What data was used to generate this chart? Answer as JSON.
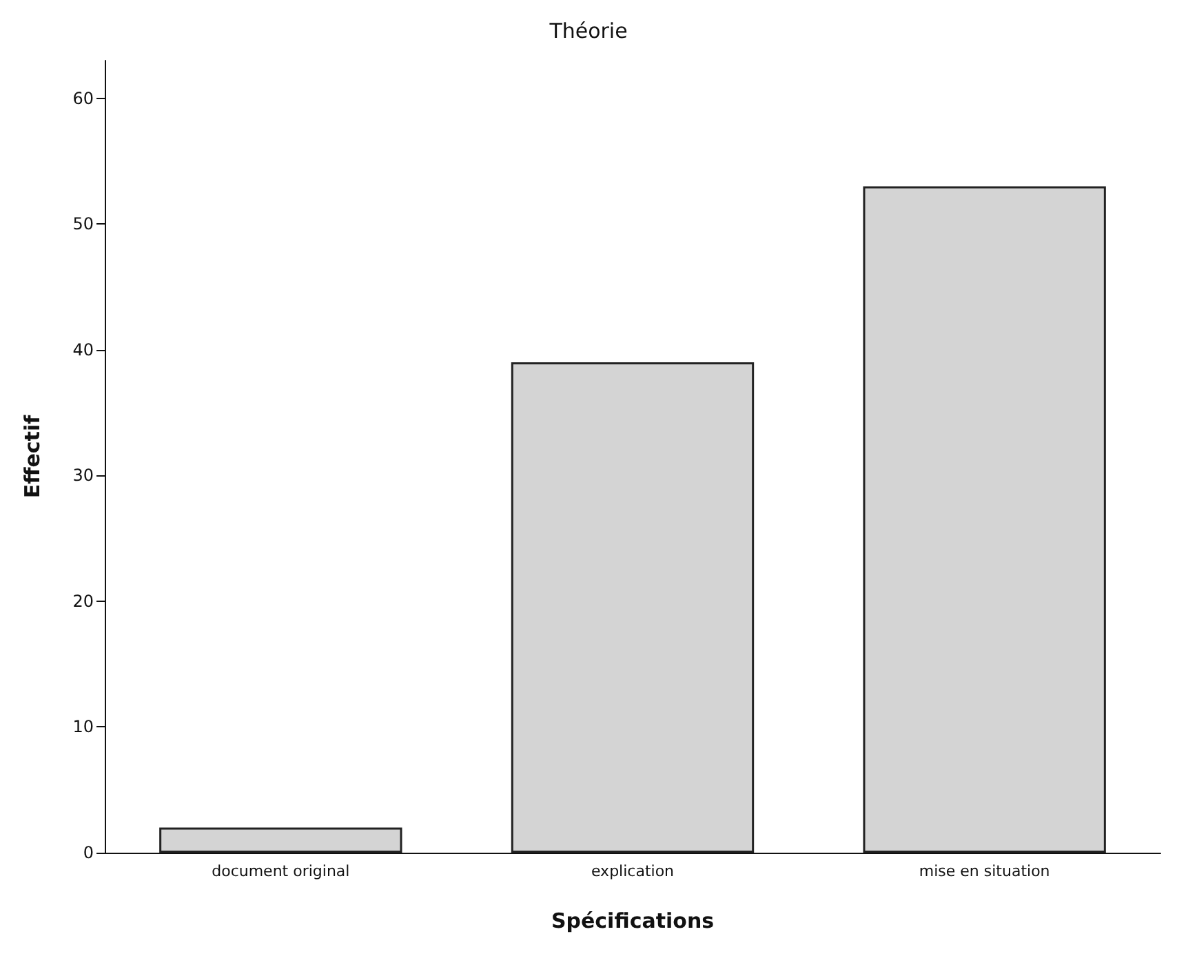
{
  "chart_data": {
    "type": "bar",
    "title": "Théorie",
    "xlabel": "Spécifications",
    "ylabel": "Effectif",
    "categories": [
      "document original",
      "explication",
      "mise en situation"
    ],
    "values": [
      2,
      39,
      53
    ],
    "color": "#d4d4d4",
    "ylim": [
      0,
      63
    ],
    "yticks": [
      0,
      10,
      20,
      30,
      40,
      50,
      60
    ],
    "grid": false
  }
}
